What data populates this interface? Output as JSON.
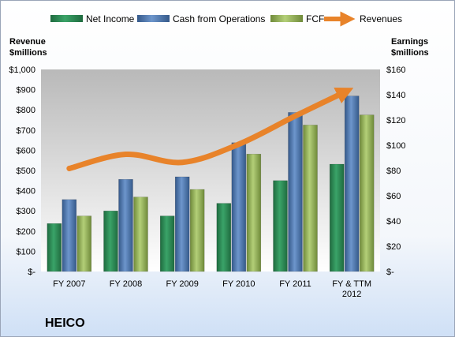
{
  "chart_data": {
    "type": "bar",
    "company": "HEICO",
    "categories": [
      "FY 2007",
      "FY 2008",
      "FY 2009",
      "FY 2010",
      "FY 2011",
      "FY & TTM 2012"
    ],
    "series": [
      {
        "name": "Net Income",
        "axis": "right",
        "values": [
          38,
          48,
          44,
          54,
          72,
          85
        ],
        "color": "#2e8b57"
      },
      {
        "name": "Cash from Operations",
        "axis": "right",
        "values": [
          57,
          73,
          75,
          102,
          126,
          139
        ],
        "color": "#4f81bd"
      },
      {
        "name": "FCF",
        "axis": "right",
        "values": [
          44,
          59,
          65,
          93,
          116,
          124
        ],
        "color": "#9bbb59"
      }
    ],
    "line_series": {
      "name": "Revenues",
      "axis": "left",
      "values": [
        510,
        580,
        540,
        630,
        770,
        890
      ],
      "color": "#e8832a"
    },
    "left_axis": {
      "title": "Revenue\n$millions",
      "ylim": [
        0,
        1000
      ],
      "ticks": [
        "$-",
        "$100",
        "$200",
        "$300",
        "$400",
        "$500",
        "$600",
        "$700",
        "$800",
        "$900",
        "$1,000"
      ]
    },
    "right_axis": {
      "title": "Earnings\n$millions",
      "ylim": [
        0,
        160
      ],
      "ticks": [
        "$-",
        "$20",
        "$40",
        "$60",
        "$80",
        "$100",
        "$120",
        "$140",
        "$160"
      ]
    },
    "grid": false,
    "legend": "top"
  }
}
